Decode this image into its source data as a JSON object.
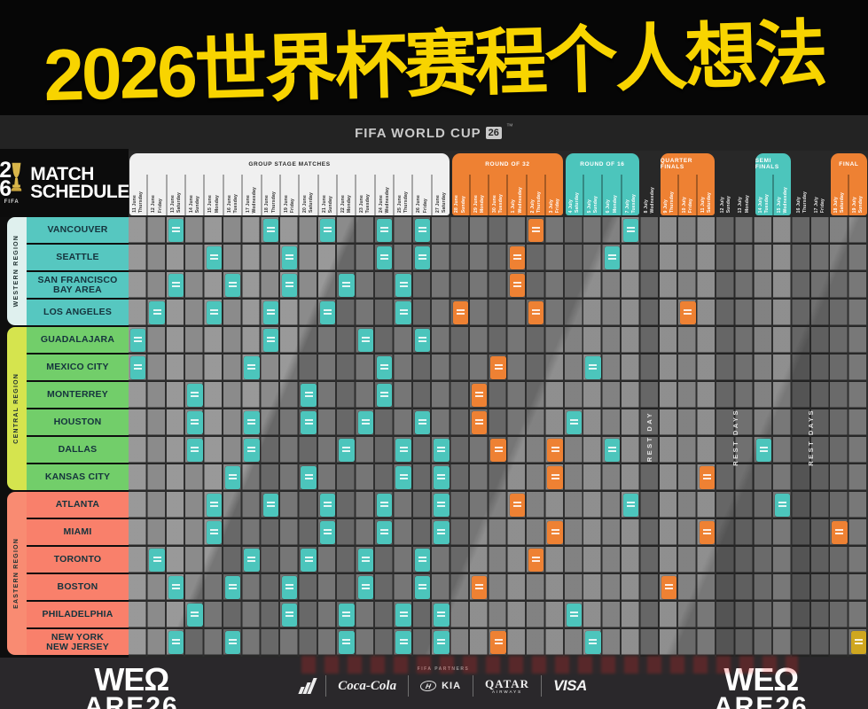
{
  "banner": {
    "title": "2026世界杯赛程个人想法"
  },
  "brand": {
    "left": "FIFA WORLD CUP",
    "badge": "26",
    "tm": "™"
  },
  "schedule_logo": {
    "digit_top": "2",
    "digit_bottom": "6",
    "fifa": "FIFA",
    "title_line1": "MATCH",
    "title_line2": "SCHEDULE",
    "trophy_icon": "world-cup-trophy-icon"
  },
  "colors": {
    "teal": "#4cc5bc",
    "orange": "#ee8133",
    "gold": "#cfa720",
    "group_header": "#f0f0f0",
    "group_text": "#2a2a2a",
    "banner_yellow": "#f8d400",
    "western_row": "#56c7c0",
    "central_row": "#72ce6a",
    "eastern_row": "#f9806b",
    "western_tab": "#dff0ee",
    "central_tab": "#d5e44e",
    "eastern_tab": "#f98b72"
  },
  "chart_data": {
    "type": "table",
    "title": "FIFA World Cup 26 Match Schedule",
    "column_groups": [
      {
        "id": "group",
        "label": "GROUP STAGE MATCHES",
        "style": "white",
        "dates": [
          "Thursday 11 June",
          "Friday 12 June",
          "Saturday 13 June",
          "Sunday 14 June",
          "Monday 15 June",
          "Tuesday 16 June",
          "Wednesday 17 June",
          "Thursday 18 June",
          "Friday 19 June",
          "Saturday 20 June",
          "Sunday 21 June",
          "Monday 22 June",
          "Tuesday 23 June",
          "Wednesday 24 June",
          "Thursday 25 June",
          "Friday 26 June",
          "Saturday 27 June"
        ]
      },
      {
        "id": "round32",
        "label": "ROUND OF 32",
        "style": "orange",
        "dates": [
          "Sunday 28 June",
          "Monday 29 June",
          "Tuesday 30 June",
          "Wednesday 1 July",
          "Thursday 2 July",
          "Friday 3 July"
        ]
      },
      {
        "id": "round16",
        "label": "ROUND OF 16",
        "style": "teal",
        "dates": [
          "Saturday 4 July",
          "Sunday 5 July",
          "Monday 6 July",
          "Tuesday 7 July"
        ]
      },
      {
        "id": "rest1",
        "label": "",
        "style": "rest",
        "rest_text": "REST DAY",
        "dates": [
          "Wednesday 8 July"
        ]
      },
      {
        "id": "quarterfinals",
        "label": "QUARTER FINALS",
        "style": "orange",
        "dates": [
          "Thursday 9 July",
          "Friday 10 July",
          "Saturday 11 July"
        ]
      },
      {
        "id": "rest2",
        "label": "",
        "style": "rest",
        "rest_text": "REST DAYS",
        "dates": [
          "Sunday 12 July",
          "Monday 13 July"
        ]
      },
      {
        "id": "semifinals",
        "label": "SEMI FINALS",
        "style": "teal",
        "dates": [
          "Tuesday 14 July",
          "Wednesday 15 July"
        ]
      },
      {
        "id": "rest3",
        "label": "",
        "style": "rest",
        "rest_text": "REST DAYS",
        "dates": [
          "Thursday 16 July",
          "Friday 17 July"
        ]
      },
      {
        "id": "final",
        "label": "FINAL",
        "style": "orange",
        "dates": [
          "Saturday 18 July",
          "Sunday 19 July"
        ]
      }
    ],
    "regions": [
      {
        "label": "WESTERN REGION",
        "tab_color_key": "western_tab",
        "row_color_key": "western_row",
        "city_count": 4
      },
      {
        "label": "CENTRAL REGION",
        "tab_color_key": "central_tab",
        "row_color_key": "central_row",
        "city_count": 6
      },
      {
        "label": "EASTERN REGION",
        "tab_color_key": "eastern_tab",
        "row_color_key": "eastern_row",
        "city_count": 6
      }
    ],
    "rows": [
      {
        "city": "VANCOUVER",
        "region": 0,
        "matches": [
          {
            "col": 2,
            "color": "teal"
          },
          {
            "col": 7,
            "color": "teal"
          },
          {
            "col": 10,
            "color": "teal"
          },
          {
            "col": 13,
            "color": "teal"
          },
          {
            "col": 15,
            "color": "teal"
          },
          {
            "col": 21,
            "color": "orange"
          },
          {
            "col": 26,
            "color": "teal"
          }
        ]
      },
      {
        "city": "SEATTLE",
        "region": 0,
        "matches": [
          {
            "col": 4,
            "color": "teal"
          },
          {
            "col": 8,
            "color": "teal"
          },
          {
            "col": 13,
            "color": "teal"
          },
          {
            "col": 15,
            "color": "teal"
          },
          {
            "col": 20,
            "color": "orange"
          },
          {
            "col": 25,
            "color": "teal"
          }
        ]
      },
      {
        "city": "SAN FRANCISCO BAY AREA",
        "region": 0,
        "lines": [
          "SAN FRANCISCO",
          "BAY AREA"
        ],
        "matches": [
          {
            "col": 2,
            "color": "teal"
          },
          {
            "col": 5,
            "color": "teal"
          },
          {
            "col": 8,
            "color": "teal"
          },
          {
            "col": 11,
            "color": "teal"
          },
          {
            "col": 14,
            "color": "teal"
          },
          {
            "col": 20,
            "color": "orange"
          }
        ]
      },
      {
        "city": "LOS ANGELES",
        "region": 0,
        "matches": [
          {
            "col": 1,
            "color": "teal"
          },
          {
            "col": 4,
            "color": "teal"
          },
          {
            "col": 7,
            "color": "teal"
          },
          {
            "col": 10,
            "color": "teal"
          },
          {
            "col": 14,
            "color": "teal"
          },
          {
            "col": 17,
            "color": "orange"
          },
          {
            "col": 21,
            "color": "orange"
          },
          {
            "col": 29,
            "color": "orange"
          }
        ]
      },
      {
        "city": "GUADALAJARA",
        "region": 1,
        "matches": [
          {
            "col": 0,
            "color": "teal"
          },
          {
            "col": 7,
            "color": "teal"
          },
          {
            "col": 12,
            "color": "teal"
          },
          {
            "col": 15,
            "color": "teal"
          }
        ]
      },
      {
        "city": "MEXICO CITY",
        "region": 1,
        "matches": [
          {
            "col": 0,
            "color": "teal"
          },
          {
            "col": 6,
            "color": "teal"
          },
          {
            "col": 13,
            "color": "teal"
          },
          {
            "col": 19,
            "color": "orange"
          },
          {
            "col": 24,
            "color": "teal"
          }
        ]
      },
      {
        "city": "MONTERREY",
        "region": 1,
        "matches": [
          {
            "col": 3,
            "color": "teal"
          },
          {
            "col": 9,
            "color": "teal"
          },
          {
            "col": 13,
            "color": "teal"
          },
          {
            "col": 18,
            "color": "orange"
          }
        ]
      },
      {
        "city": "HOUSTON",
        "region": 1,
        "matches": [
          {
            "col": 3,
            "color": "teal"
          },
          {
            "col": 6,
            "color": "teal"
          },
          {
            "col": 9,
            "color": "teal"
          },
          {
            "col": 12,
            "color": "teal"
          },
          {
            "col": 15,
            "color": "teal"
          },
          {
            "col": 18,
            "color": "orange"
          },
          {
            "col": 23,
            "color": "teal"
          }
        ]
      },
      {
        "city": "DALLAS",
        "region": 1,
        "matches": [
          {
            "col": 3,
            "color": "teal"
          },
          {
            "col": 6,
            "color": "teal"
          },
          {
            "col": 11,
            "color": "teal"
          },
          {
            "col": 14,
            "color": "teal"
          },
          {
            "col": 16,
            "color": "teal"
          },
          {
            "col": 19,
            "color": "orange"
          },
          {
            "col": 22,
            "color": "orange"
          },
          {
            "col": 25,
            "color": "teal"
          },
          {
            "col": 33,
            "color": "teal"
          }
        ]
      },
      {
        "city": "KANSAS CITY",
        "region": 1,
        "matches": [
          {
            "col": 5,
            "color": "teal"
          },
          {
            "col": 9,
            "color": "teal"
          },
          {
            "col": 14,
            "color": "teal"
          },
          {
            "col": 16,
            "color": "teal"
          },
          {
            "col": 22,
            "color": "orange"
          },
          {
            "col": 30,
            "color": "orange"
          }
        ]
      },
      {
        "city": "ATLANTA",
        "region": 2,
        "matches": [
          {
            "col": 4,
            "color": "teal"
          },
          {
            "col": 7,
            "color": "teal"
          },
          {
            "col": 10,
            "color": "teal"
          },
          {
            "col": 13,
            "color": "teal"
          },
          {
            "col": 16,
            "color": "teal"
          },
          {
            "col": 20,
            "color": "orange"
          },
          {
            "col": 26,
            "color": "teal"
          },
          {
            "col": 34,
            "color": "teal"
          }
        ]
      },
      {
        "city": "MIAMI",
        "region": 2,
        "matches": [
          {
            "col": 4,
            "color": "teal"
          },
          {
            "col": 10,
            "color": "teal"
          },
          {
            "col": 13,
            "color": "teal"
          },
          {
            "col": 16,
            "color": "teal"
          },
          {
            "col": 22,
            "color": "orange"
          },
          {
            "col": 30,
            "color": "orange"
          },
          {
            "col": 37,
            "color": "orange"
          }
        ]
      },
      {
        "city": "TORONTO",
        "region": 2,
        "matches": [
          {
            "col": 1,
            "color": "teal"
          },
          {
            "col": 6,
            "color": "teal"
          },
          {
            "col": 9,
            "color": "teal"
          },
          {
            "col": 12,
            "color": "teal"
          },
          {
            "col": 15,
            "color": "teal"
          },
          {
            "col": 21,
            "color": "orange"
          }
        ]
      },
      {
        "city": "BOSTON",
        "region": 2,
        "matches": [
          {
            "col": 2,
            "color": "teal"
          },
          {
            "col": 5,
            "color": "teal"
          },
          {
            "col": 8,
            "color": "teal"
          },
          {
            "col": 12,
            "color": "teal"
          },
          {
            "col": 15,
            "color": "teal"
          },
          {
            "col": 18,
            "color": "orange"
          },
          {
            "col": 28,
            "color": "orange"
          }
        ]
      },
      {
        "city": "PHILADELPHIA",
        "region": 2,
        "matches": [
          {
            "col": 3,
            "color": "teal"
          },
          {
            "col": 8,
            "color": "teal"
          },
          {
            "col": 11,
            "color": "teal"
          },
          {
            "col": 14,
            "color": "teal"
          },
          {
            "col": 16,
            "color": "teal"
          },
          {
            "col": 23,
            "color": "teal"
          }
        ]
      },
      {
        "city": "NEW YORK NEW JERSEY",
        "region": 2,
        "lines": [
          "NEW YORK",
          "NEW JERSEY"
        ],
        "matches": [
          {
            "col": 2,
            "color": "teal"
          },
          {
            "col": 5,
            "color": "teal"
          },
          {
            "col": 11,
            "color": "teal"
          },
          {
            "col": 14,
            "color": "teal"
          },
          {
            "col": 16,
            "color": "teal"
          },
          {
            "col": 19,
            "color": "orange"
          },
          {
            "col": 24,
            "color": "teal"
          },
          {
            "col": 38,
            "color": "gold"
          }
        ]
      }
    ]
  },
  "footer": {
    "partners_label": "FIFA PARTNERS",
    "sponsors": [
      "adidas",
      "Coca-Cola",
      "HYUNDAI",
      "KIA",
      "QATAR",
      "AIRWAYS",
      "VISA"
    ],
    "we_logo_line1": "WEΩ",
    "we_logo_line2": "ARE26"
  }
}
